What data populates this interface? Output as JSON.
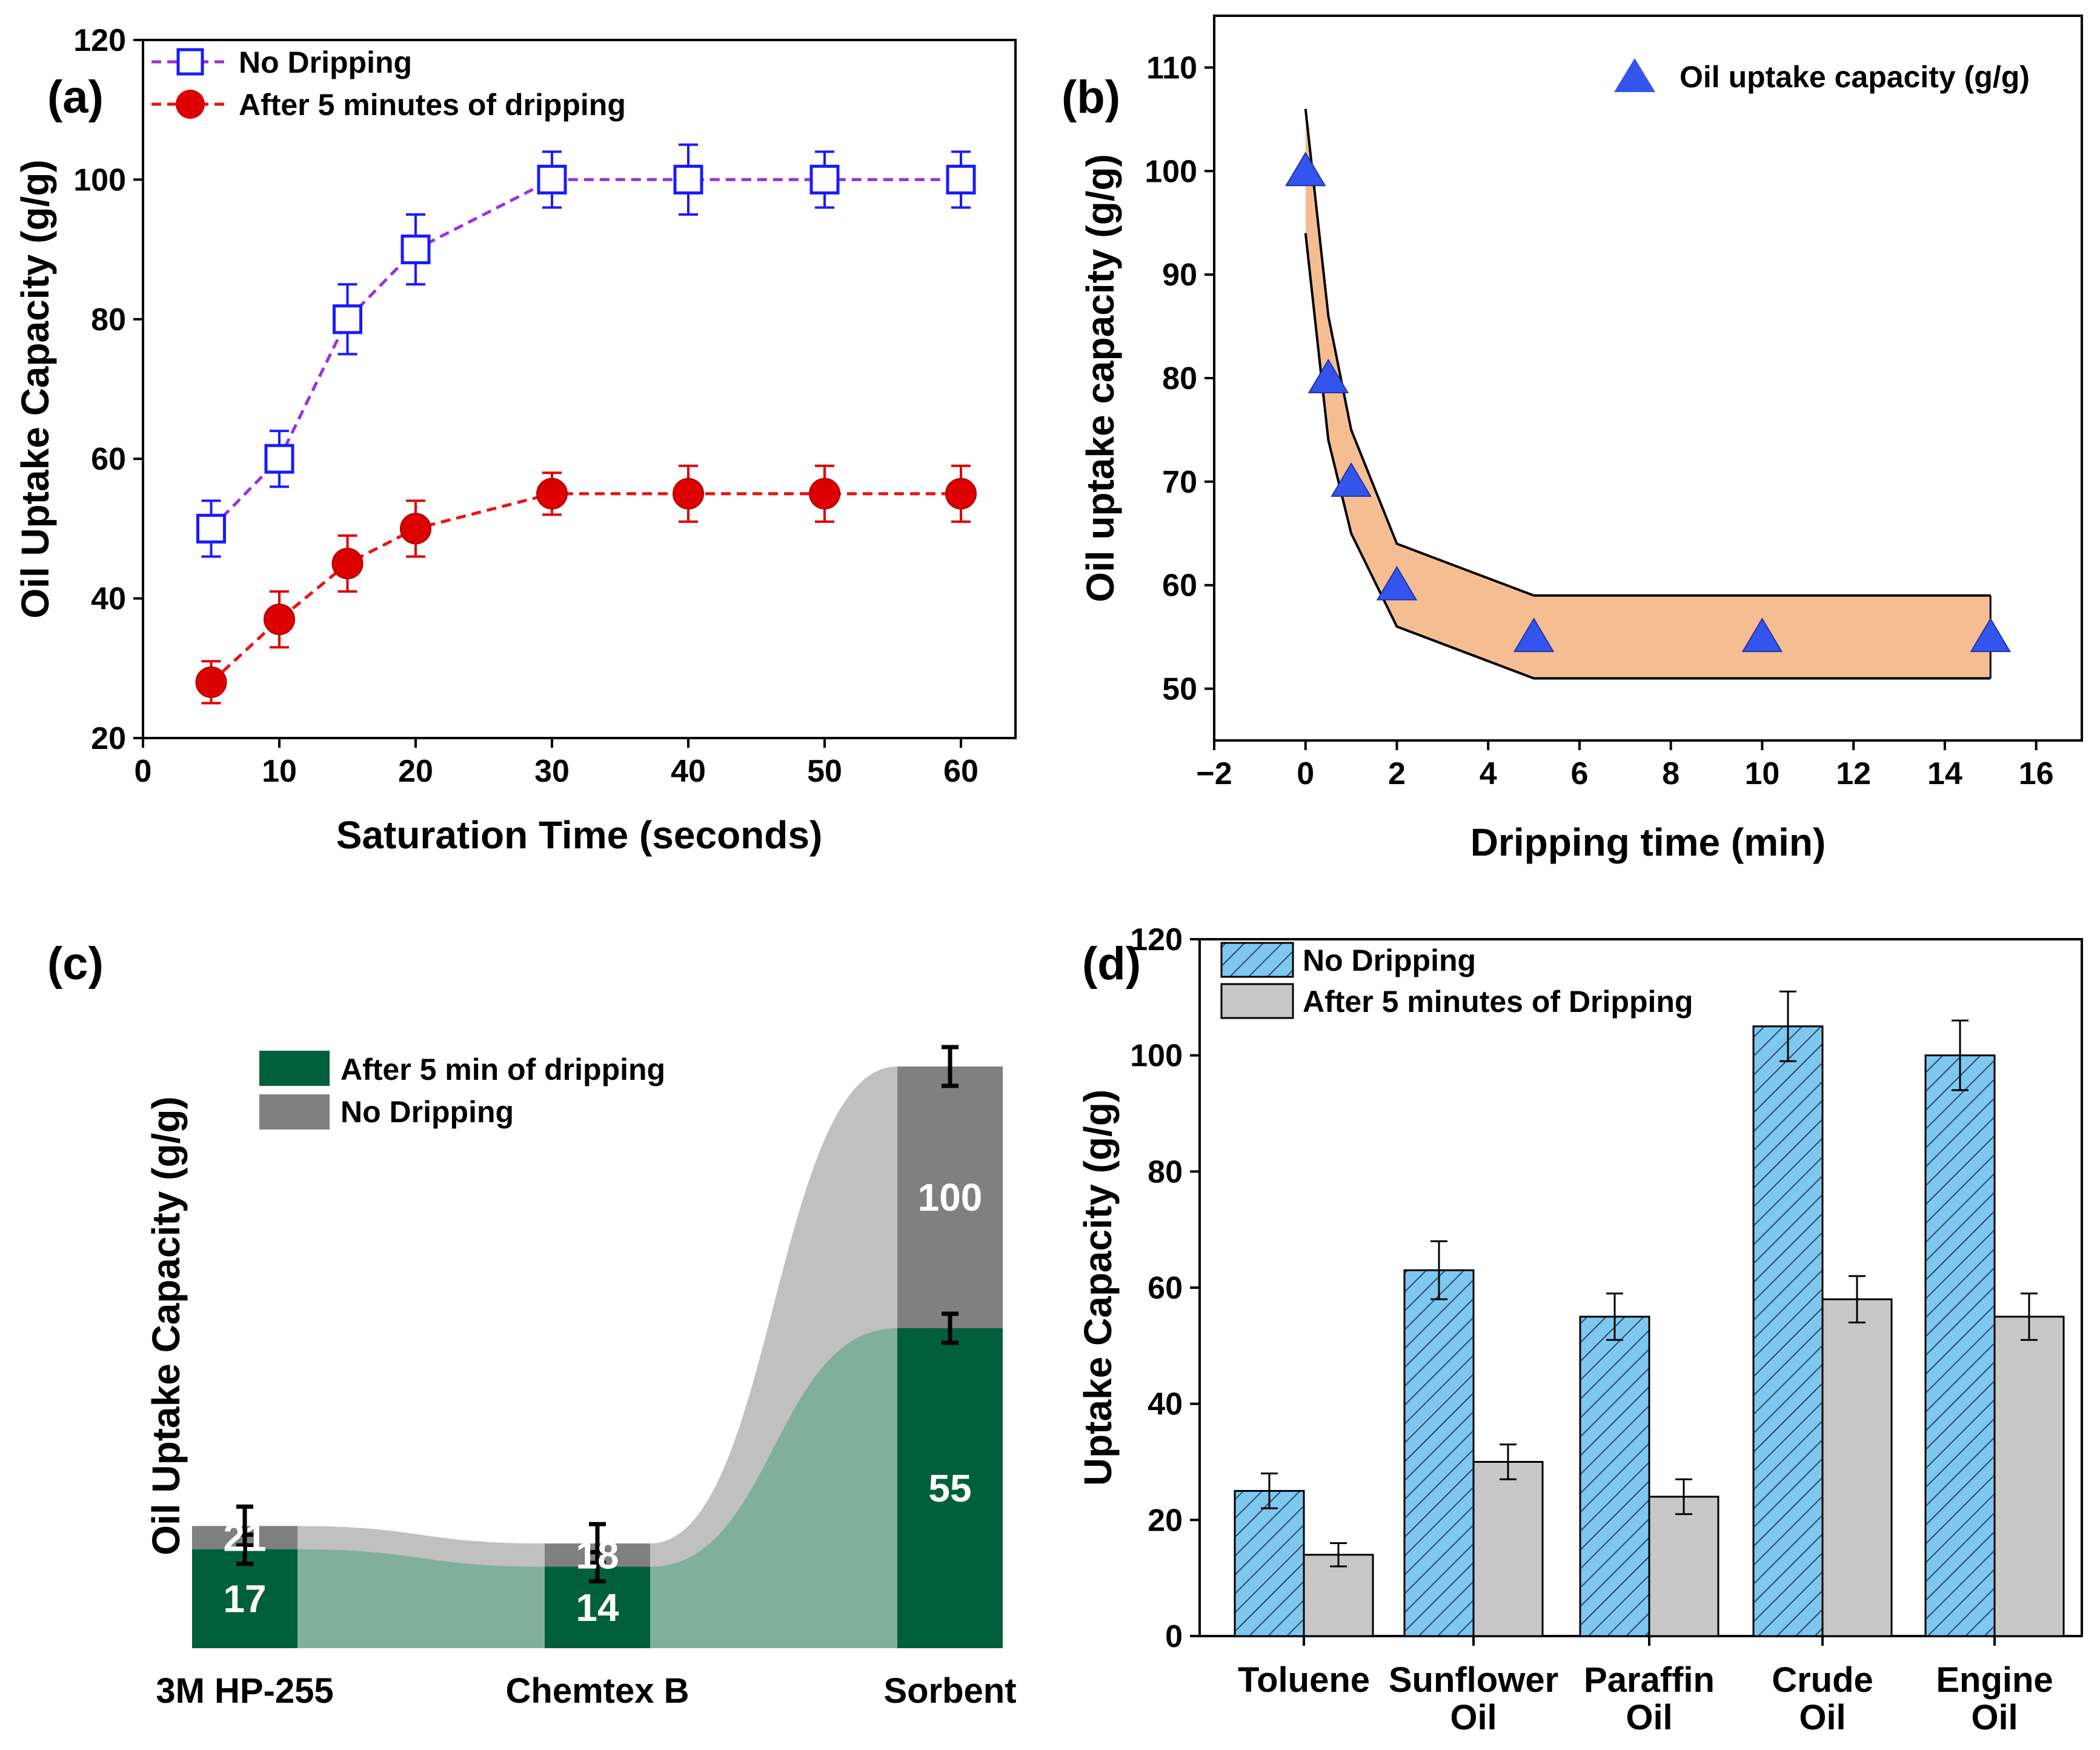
{
  "chart_data": [
    {
      "panel": "(a)",
      "type": "line",
      "xlabel": "Saturation Time (seconds)",
      "ylabel": "Oil Uptake Capacity (g/g)",
      "xlim": [
        0,
        64
      ],
      "ylim": [
        20,
        120
      ],
      "xticks": [
        0,
        10,
        20,
        30,
        40,
        50,
        60
      ],
      "yticks": [
        20,
        40,
        60,
        80,
        100,
        120
      ],
      "legend_position": "top-left",
      "series": [
        {
          "name": "No Dripping",
          "color": "#9b30e0",
          "marker_color": "#1a1aff",
          "marker": "open-square",
          "x": [
            5,
            10,
            15,
            20,
            30,
            40,
            50,
            60
          ],
          "values": [
            50,
            60,
            80,
            90,
            100,
            100,
            100,
            100
          ],
          "errors": [
            4,
            4,
            5,
            5,
            4,
            5,
            4,
            4
          ]
        },
        {
          "name": "After 5 minutes of dripping",
          "color": "#ee1111",
          "marker_color": "#dd0000",
          "marker": "filled-circle",
          "x": [
            5,
            10,
            15,
            20,
            30,
            40,
            50,
            60
          ],
          "values": [
            28,
            37,
            45,
            50,
            55,
            55,
            55,
            55
          ],
          "errors": [
            3,
            4,
            4,
            4,
            3,
            4,
            4,
            4
          ]
        }
      ]
    },
    {
      "panel": "(b)",
      "type": "scatter",
      "xlabel": "Dripping time (min)",
      "ylabel": "Oil uptake capacity (g/g)",
      "xlim": [
        -2,
        17
      ],
      "ylim": [
        45,
        115
      ],
      "xticks": [
        -2,
        0,
        2,
        4,
        6,
        8,
        10,
        12,
        14,
        16
      ],
      "xtick_labels": [
        "−2",
        "0",
        "2",
        "4",
        "6",
        "8",
        "10",
        "12",
        "14",
        "16"
      ],
      "yticks": [
        50,
        60,
        70,
        80,
        90,
        100,
        110
      ],
      "legend_position": "top-right",
      "series": [
        {
          "name": "Oil uptake capacity (g/g)",
          "color": "#3355ee",
          "marker": "filled-triangle",
          "x": [
            0,
            0.5,
            1,
            2,
            5,
            10,
            15
          ],
          "values": [
            100,
            80,
            70,
            60,
            55,
            55,
            55
          ]
        }
      ],
      "band": {
        "color": "#f5be92",
        "x": [
          0,
          0.5,
          1,
          2,
          5,
          10,
          15
        ],
        "upper": [
          106,
          86,
          75,
          64,
          59,
          59,
          59
        ],
        "lower": [
          94,
          74,
          65,
          56,
          51,
          51,
          51
        ]
      }
    },
    {
      "panel": "(c)",
      "type": "bar",
      "ylabel": "Oil Uptake Capacity (g/g)",
      "categories": [
        "3M HP-255",
        "Chemtex B",
        "Sorbent"
      ],
      "legend_position": "top-left",
      "series": [
        {
          "name": "After 5 min of dripping",
          "color": "#005f3c",
          "flow_color": "#80af9c",
          "values": [
            17,
            14,
            55
          ]
        },
        {
          "name": "No Dripping",
          "color": "#808080",
          "flow_color": "#c0c0c0",
          "values": [
            21,
            18,
            100
          ]
        }
      ],
      "value_labels": {
        "dripping": [
          "17",
          "14",
          "55"
        ],
        "no_dripping": [
          "21",
          "18",
          "100"
        ]
      }
    },
    {
      "panel": "(d)",
      "type": "bar",
      "ylabel": "Uptake Capacity (g/g)",
      "ylim": [
        0,
        120
      ],
      "yticks": [
        0,
        20,
        40,
        60,
        80,
        100,
        120
      ],
      "categories": [
        "Toluene",
        "Sunflower Oil",
        "Paraffin Oil",
        "Crude Oil",
        "Engine Oil"
      ],
      "category_lines": [
        [
          "Toluene"
        ],
        [
          "Sunflower",
          "Oil"
        ],
        [
          "Paraffin",
          "Oil"
        ],
        [
          "Crude",
          "Oil"
        ],
        [
          "Engine",
          "Oil"
        ]
      ],
      "legend_position": "top-left",
      "series": [
        {
          "name": "No Dripping",
          "color": "#7ec8f0",
          "pattern": "hatched",
          "values": [
            25,
            63,
            55,
            105,
            100
          ],
          "errors": [
            3,
            5,
            4,
            6,
            6
          ]
        },
        {
          "name": "After 5 minutes of Dripping",
          "color": "#c8c8c8",
          "pattern": "solid",
          "values": [
            14,
            30,
            24,
            58,
            55
          ],
          "errors": [
            2,
            3,
            3,
            4,
            4
          ]
        }
      ]
    }
  ]
}
